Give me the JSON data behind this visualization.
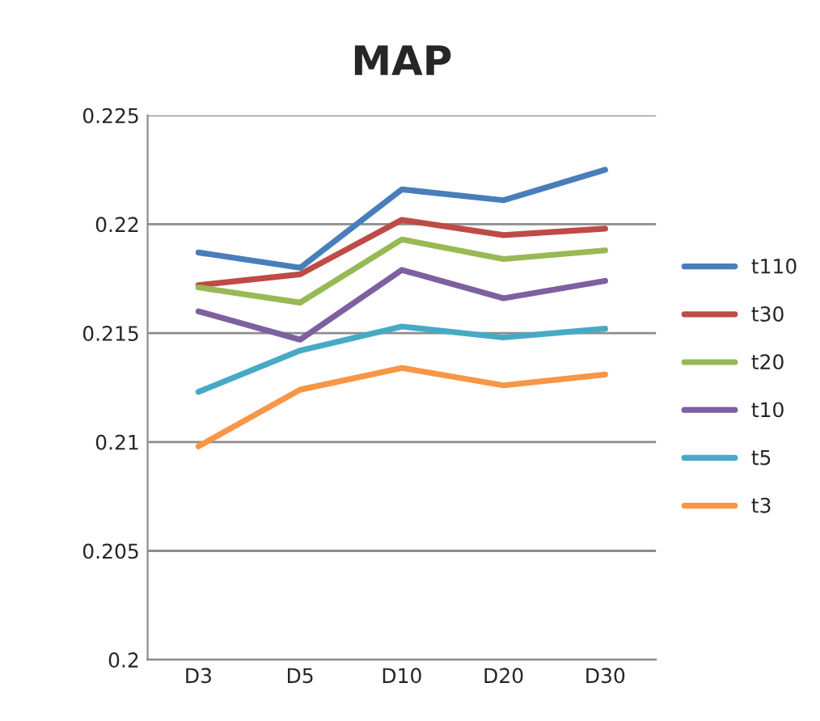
{
  "chart_data": {
    "type": "line",
    "title": "MAP",
    "categories": [
      "D3",
      "D5",
      "D10",
      "D20",
      "D30"
    ],
    "series": [
      {
        "name": "t110",
        "color": "#4a7ebb",
        "values": [
          0.2187,
          0.218,
          0.2216,
          0.2211,
          0.2225
        ]
      },
      {
        "name": "t30",
        "color": "#be4b48",
        "values": [
          0.2172,
          0.2177,
          0.2202,
          0.2195,
          0.2198
        ]
      },
      {
        "name": "t20",
        "color": "#98b954",
        "values": [
          0.2171,
          0.2164,
          0.2193,
          0.2184,
          0.2188
        ]
      },
      {
        "name": "t10",
        "color": "#7d60a0",
        "values": [
          0.216,
          0.2147,
          0.2179,
          0.2166,
          0.2174
        ]
      },
      {
        "name": "t5",
        "color": "#46aac5",
        "values": [
          0.2123,
          0.2142,
          0.2153,
          0.2148,
          0.2152
        ]
      },
      {
        "name": "t3",
        "color": "#f79646",
        "values": [
          0.2098,
          0.2124,
          0.2134,
          0.2126,
          0.2131
        ]
      }
    ],
    "ylim": [
      0.2,
      0.225
    ],
    "yticks": [
      0.2,
      0.205,
      0.21,
      0.215,
      0.22,
      0.225
    ],
    "grid": "y",
    "legend": "right",
    "marker": "none",
    "line_style": "solid"
  }
}
